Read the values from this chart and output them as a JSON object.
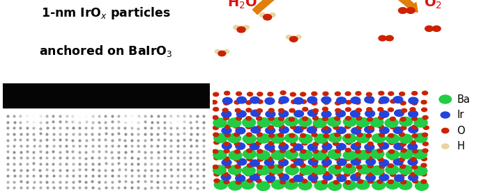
{
  "legend_items": [
    {
      "label": "Ba",
      "color": "#22cc44"
    },
    {
      "label": "Ir",
      "color": "#2244dd"
    },
    {
      "label": "O",
      "color": "#cc2200"
    },
    {
      "label": "H",
      "color": "#e8d5a0"
    }
  ],
  "arrow_color": "#e07800",
  "background_color": "#ffffff",
  "ba_color": "#22cc44",
  "ir_color": "#2244dd",
  "o_color": "#cc2200",
  "h_color": "#e8d5a0",
  "h2o_label": "H$_2$O",
  "o2_label": "O$_2$",
  "label_color": "#dd1111",
  "title1": "1-nm IrO$_x$ particles",
  "title2": "anchored on BaIrO$_3$"
}
